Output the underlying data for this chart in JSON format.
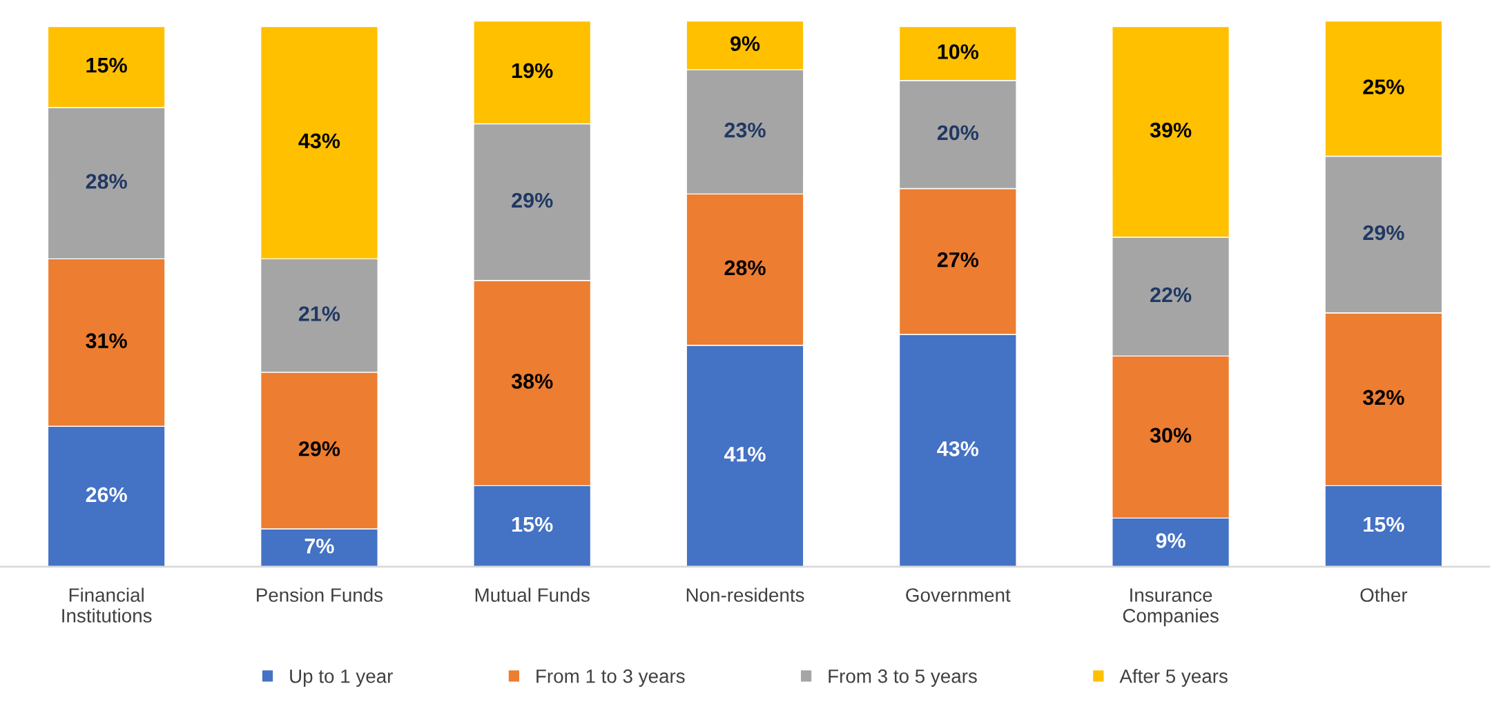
{
  "chart_data": {
    "type": "bar",
    "stacked": true,
    "legend": "bottom",
    "grid": false,
    "categories": [
      "Financial\nInstitutions",
      "Pension Funds",
      "Mutual Funds",
      "Non-residents",
      "Government",
      "Insurance\nCompanies",
      "Other"
    ],
    "series": [
      {
        "name": "Up to 1 year",
        "color": "#4472c4",
        "values": [
          26,
          7,
          15,
          41,
          43,
          9,
          15
        ],
        "value_labels": [
          "26%",
          "7%",
          "15%",
          "41%",
          "43%",
          "9%",
          "15%"
        ]
      },
      {
        "name": "From 1 to 3 years",
        "color": "#ed7d31",
        "values": [
          31,
          29,
          38,
          28,
          27,
          30,
          32
        ],
        "value_labels": [
          "31%",
          "29%",
          "38%",
          "28%",
          "27%",
          "30%",
          "32%"
        ]
      },
      {
        "name": "From 3 to 5 years",
        "color": "#a5a5a5",
        "values": [
          28,
          21,
          29,
          23,
          20,
          22,
          29
        ],
        "value_labels": [
          "28%",
          "21%",
          "29%",
          "23%",
          "20%",
          "22%",
          "29%"
        ]
      },
      {
        "name": "After 5 years",
        "color": "#ffc000",
        "values": [
          15,
          43,
          19,
          9,
          10,
          39,
          25
        ],
        "value_labels": [
          "15%",
          "43%",
          "19%",
          "9%",
          "10%",
          "39%",
          "25%"
        ]
      }
    ]
  }
}
